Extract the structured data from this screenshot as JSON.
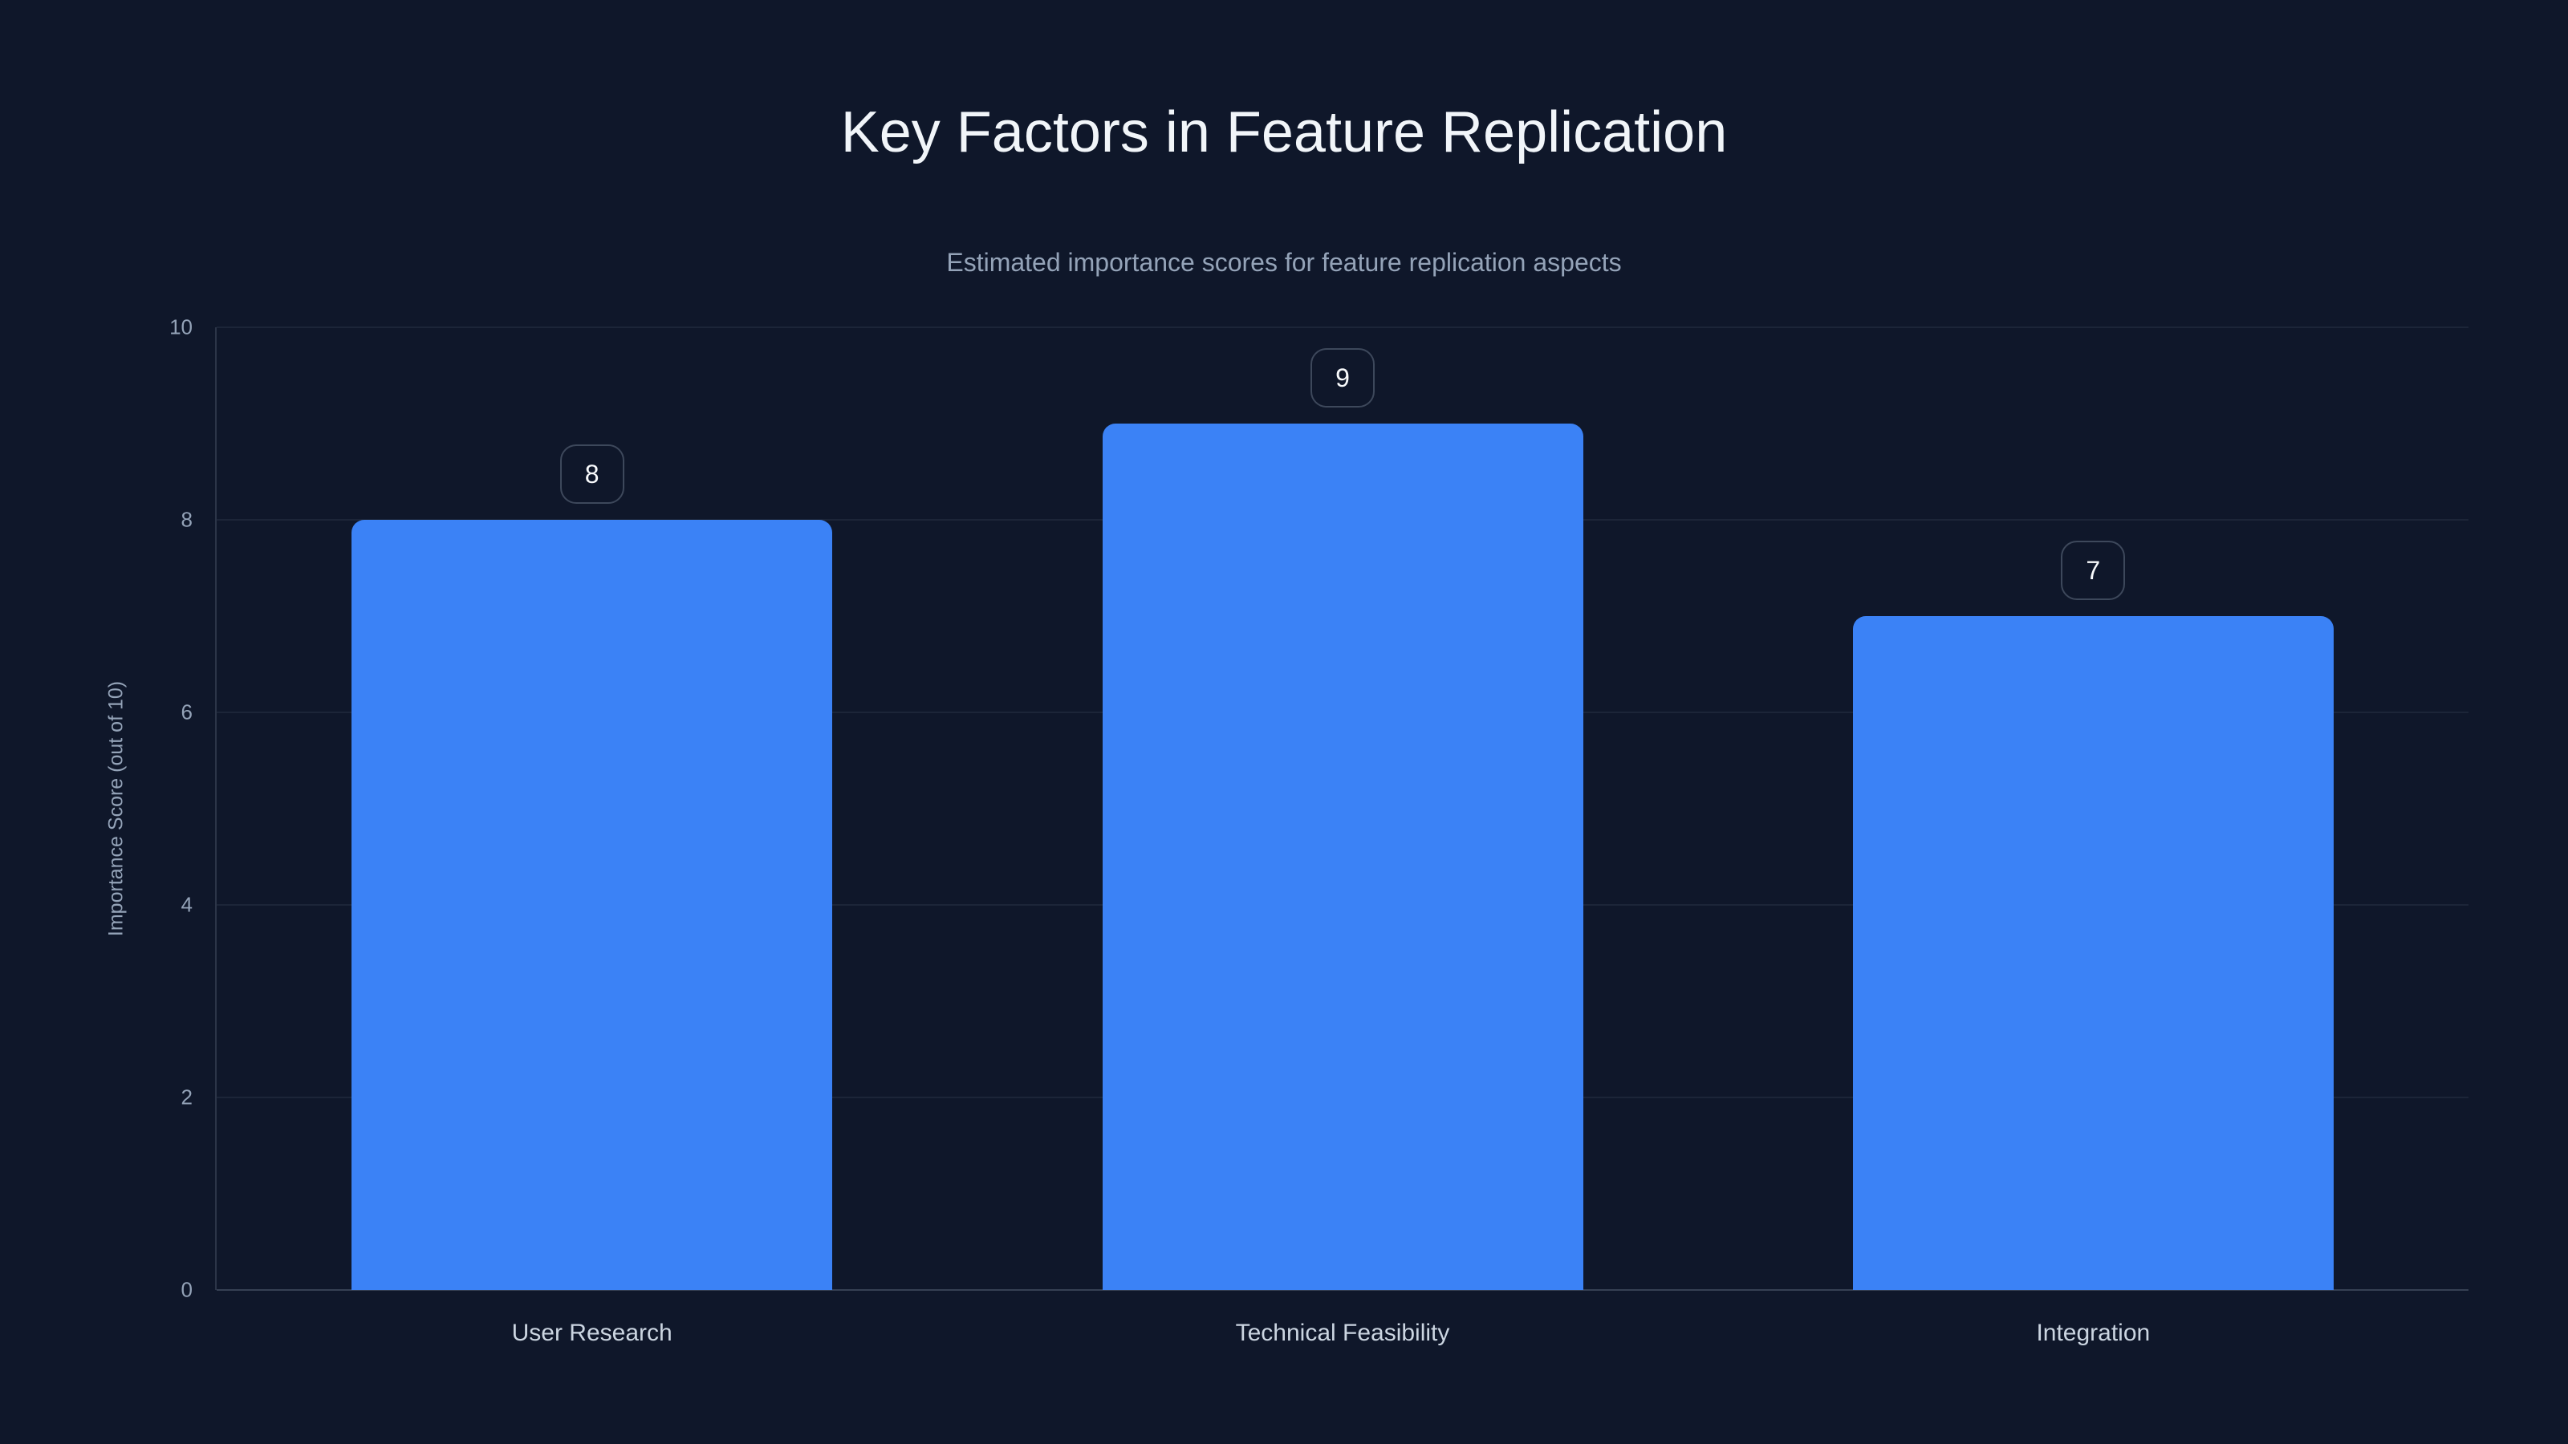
{
  "chart_data": {
    "type": "bar",
    "title": "Key Factors in Feature Replication",
    "subtitle": "Estimated importance scores for feature replication aspects",
    "categories": [
      "User Research",
      "Technical Feasibility",
      "Integration"
    ],
    "values": [
      8,
      9,
      7
    ],
    "value_labels": [
      "8",
      "9",
      "7"
    ],
    "xlabel": "",
    "ylabel": "Importance Score (out of 10)",
    "ylim": [
      0,
      10
    ],
    "yticks": [
      0,
      2,
      4,
      6,
      8,
      10
    ],
    "grid": true,
    "legend": false,
    "bar_color": "#3b82f6",
    "background_color": "#0f172a",
    "title_color": "#f1f5f9",
    "subtitle_color": "#94a3b8",
    "tick_label_color": "#94a3b8",
    "category_label_color": "#cbd5e1"
  }
}
